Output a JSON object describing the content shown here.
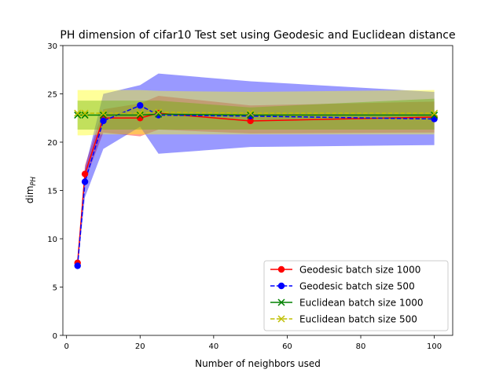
{
  "chart_data": {
    "type": "line",
    "title": "PH dimension of cifar10 Test set using Geodesic and Euclidean distance",
    "xlabel": "Number of neighbors used",
    "ylabel_main": "dim",
    "ylabel_sub": "PH",
    "xlim": [
      -1,
      105
    ],
    "ylim": [
      0,
      30
    ],
    "xticks": [
      0,
      20,
      40,
      60,
      80,
      100
    ],
    "yticks": [
      0,
      5,
      10,
      15,
      20,
      25,
      30
    ],
    "grid": false,
    "legend_position": "lower-right",
    "x": [
      3,
      5,
      10,
      20,
      25,
      50,
      100
    ],
    "series": [
      {
        "name": "Geodesic batch size 1000",
        "color": "#ff0000",
        "linestyle": "solid",
        "marker": "circle",
        "values": [
          7.5,
          16.7,
          22.5,
          22.5,
          23.0,
          22.2,
          22.6
        ],
        "band_lower": [
          7.2,
          16.0,
          21.0,
          20.6,
          21.3,
          20.9,
          21.0
        ],
        "band_upper": [
          7.8,
          17.6,
          23.4,
          24.0,
          24.8,
          23.8,
          24.2
        ],
        "band_color": "#ff0000"
      },
      {
        "name": "Geodesic batch size 500",
        "color": "#0000ff",
        "linestyle": "dashed",
        "marker": "circle",
        "values": [
          7.2,
          15.9,
          22.2,
          23.8,
          22.8,
          22.7,
          22.4
        ],
        "band_lower": [
          7.0,
          14.3,
          19.3,
          21.6,
          18.8,
          19.5,
          19.7
        ],
        "band_upper": [
          7.5,
          17.3,
          25.0,
          25.9,
          27.1,
          26.3,
          25.2
        ],
        "band_color": "#0000ff"
      },
      {
        "name": "Euclidean batch size 1000",
        "color": "#008000",
        "linestyle": "solid",
        "marker": "x",
        "values": [
          22.8,
          22.8,
          22.8,
          22.8,
          22.9,
          22.8,
          22.8
        ],
        "band_lower": [
          21.3,
          21.3,
          21.3,
          21.3,
          21.3,
          21.3,
          21.3
        ],
        "band_upper": [
          24.3,
          24.3,
          24.3,
          24.3,
          24.3,
          23.6,
          24.5
        ],
        "band_color": "#008000"
      },
      {
        "name": "Euclidean batch size 500",
        "color": "#bfbf00",
        "linestyle": "dashed",
        "marker": "x",
        "values": [
          23.0,
          23.0,
          23.0,
          23.0,
          23.1,
          23.0,
          23.0
        ],
        "band_lower": [
          20.7,
          20.7,
          20.8,
          20.8,
          20.8,
          20.8,
          20.8
        ],
        "band_upper": [
          25.4,
          25.4,
          25.4,
          25.4,
          25.3,
          25.2,
          25.4
        ],
        "band_color": "#ffff00"
      }
    ]
  }
}
